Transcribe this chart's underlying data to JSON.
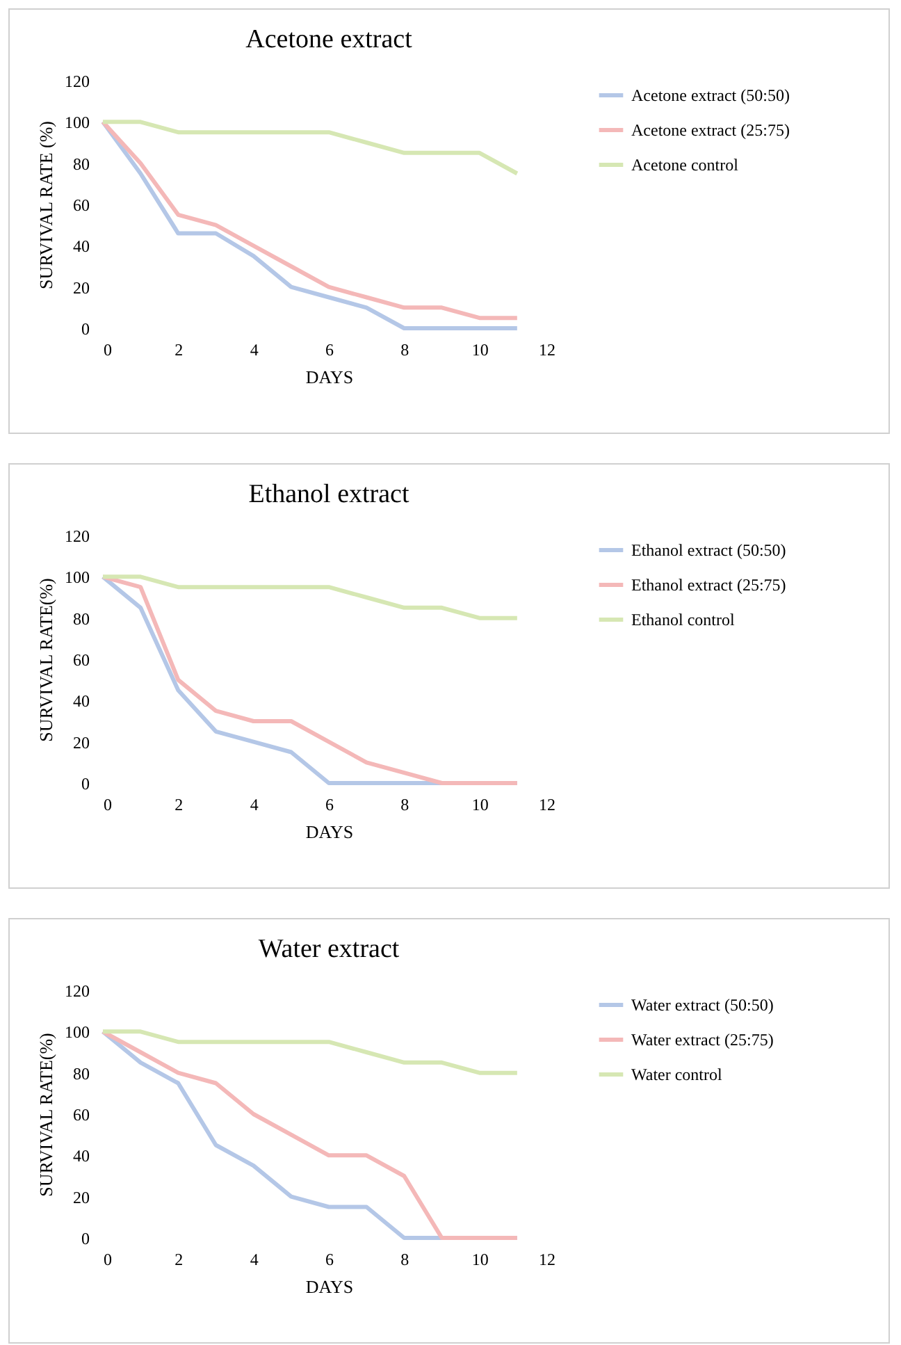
{
  "chart_data": [
    {
      "type": "line",
      "title": "Acetone extract",
      "xlabel": "DAYS",
      "ylabel": "SURVIVAL RATE (%)",
      "x": [
        0,
        1,
        2,
        3,
        4,
        5,
        6,
        7,
        8,
        9,
        10,
        11
      ],
      "xlim": [
        0,
        12
      ],
      "xticks": [
        0,
        2,
        4,
        6,
        8,
        10,
        12
      ],
      "ylim": [
        0,
        120
      ],
      "yticks": [
        0,
        20,
        40,
        60,
        80,
        100,
        120
      ],
      "legend": "right",
      "grid": false,
      "series": [
        {
          "name": "Acetone extract (50:50)",
          "color": "#b4c7e7",
          "values": [
            100,
            75,
            46,
            46,
            35,
            20,
            15,
            10,
            0,
            0,
            0,
            0
          ]
        },
        {
          "name": "Acetone extract (25:75)",
          "color": "#f4b8b8",
          "values": [
            100,
            80,
            55,
            50,
            40,
            30,
            20,
            15,
            10,
            10,
            5,
            5
          ]
        },
        {
          "name": "Acetone control",
          "color": "#d6e7b3",
          "values": [
            100,
            100,
            95,
            95,
            95,
            95,
            95,
            90,
            85,
            85,
            85,
            75
          ]
        }
      ]
    },
    {
      "type": "line",
      "title": "Ethanol extract",
      "xlabel": "DAYS",
      "ylabel": "SURVIVAL RATE(%)",
      "x": [
        0,
        1,
        2,
        3,
        4,
        5,
        6,
        7,
        8,
        9,
        10,
        11
      ],
      "xlim": [
        0,
        12
      ],
      "xticks": [
        0,
        2,
        4,
        6,
        8,
        10,
        12
      ],
      "ylim": [
        0,
        120
      ],
      "yticks": [
        0,
        20,
        40,
        60,
        80,
        100,
        120
      ],
      "legend": "right",
      "grid": false,
      "series": [
        {
          "name": "Ethanol extract (50:50)",
          "color": "#b4c7e7",
          "values": [
            100,
            85,
            45,
            25,
            20,
            15,
            0,
            0,
            0,
            0,
            0,
            0
          ]
        },
        {
          "name": "Ethanol extract (25:75)",
          "color": "#f4b8b8",
          "values": [
            100,
            95,
            50,
            35,
            30,
            30,
            20,
            10,
            5,
            0,
            0,
            0
          ]
        },
        {
          "name": "Ethanol control",
          "color": "#d6e7b3",
          "values": [
            100,
            100,
            95,
            95,
            95,
            95,
            95,
            90,
            85,
            85,
            80,
            80
          ]
        }
      ]
    },
    {
      "type": "line",
      "title": "Water extract",
      "xlabel": "DAYS",
      "ylabel": "SURVIVAL RATE(%)",
      "x": [
        0,
        1,
        2,
        3,
        4,
        5,
        6,
        7,
        8,
        9,
        10,
        11
      ],
      "xlim": [
        0,
        12
      ],
      "xticks": [
        0,
        2,
        4,
        6,
        8,
        10,
        12
      ],
      "ylim": [
        0,
        120
      ],
      "yticks": [
        0,
        20,
        40,
        60,
        80,
        100,
        120
      ],
      "legend": "right",
      "grid": false,
      "series": [
        {
          "name": "Water extract (50:50)",
          "color": "#b4c7e7",
          "values": [
            100,
            85,
            75,
            45,
            35,
            20,
            15,
            15,
            0,
            0,
            0,
            0
          ]
        },
        {
          "name": "Water extract (25:75)",
          "color": "#f4b8b8",
          "values": [
            100,
            90,
            80,
            75,
            60,
            50,
            40,
            40,
            30,
            0,
            0,
            0
          ]
        },
        {
          "name": "Water control",
          "color": "#d6e7b3",
          "values": [
            100,
            100,
            95,
            95,
            95,
            95,
            95,
            90,
            85,
            85,
            80,
            80
          ]
        }
      ]
    }
  ]
}
